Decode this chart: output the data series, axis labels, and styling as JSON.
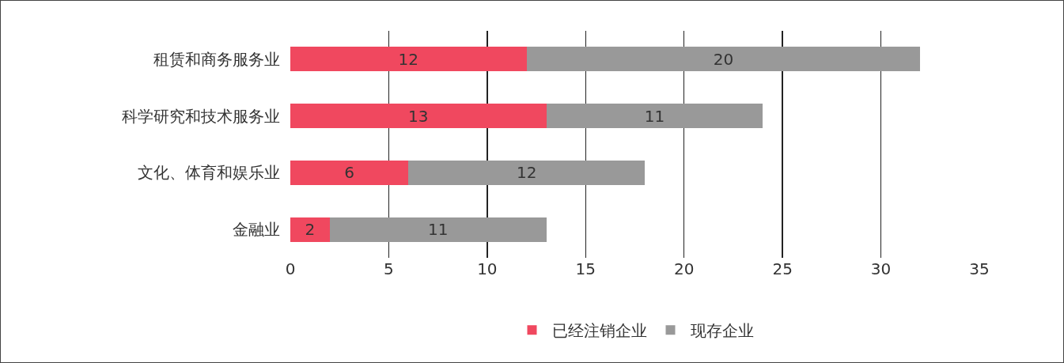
{
  "chart_data": {
    "type": "bar",
    "orientation": "horizontal",
    "stacked": true,
    "categories": [
      "租赁和商务服务业",
      "科学研究和技术服务业",
      "文化、体育和娱乐业",
      "金融业"
    ],
    "series": [
      {
        "name": "已经注销企业",
        "color": "#f0485f",
        "values": [
          12,
          13,
          6,
          2
        ]
      },
      {
        "name": "现存企业",
        "color": "#999999",
        "values": [
          20,
          11,
          12,
          11
        ]
      }
    ],
    "xlim": [
      0,
      35
    ],
    "xticks": [
      0,
      5,
      10,
      15,
      20,
      25,
      30,
      35
    ],
    "grid": "x",
    "legend": "bottom",
    "data_labels": true
  }
}
